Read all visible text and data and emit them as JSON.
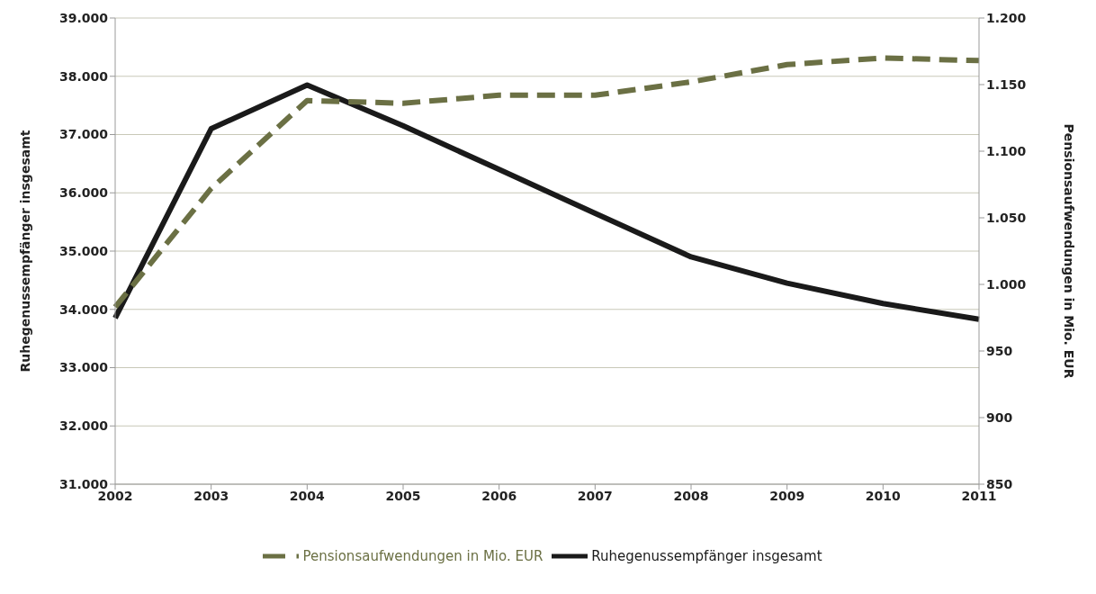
{
  "chart_data": {
    "type": "line",
    "categories": [
      "2002",
      "2003",
      "2004",
      "2005",
      "2006",
      "2007",
      "2008",
      "2009",
      "2010",
      "2011"
    ],
    "series": [
      {
        "name": "Ruhegenussempfänger insgesamt",
        "color": "#1a1a1a",
        "line_style": "solid",
        "values": [
          33850,
          37100,
          37850,
          37150,
          36400,
          35650,
          34900,
          34450,
          34100,
          33830
        ]
      },
      {
        "name": "Pensionsaufwendungen in Mio. EUR",
        "color": "#6b7044",
        "line_style": "dashed",
        "axis": "y2",
        "values": [
          983,
          1072,
          1138,
          1136,
          1142,
          1142,
          1152,
          1165,
          1170,
          1168
        ]
      }
    ],
    "ylabel": "Ruhegenussempfänger insgesamt",
    "y2label": "Pensionsaufwendungen in Mio. EUR",
    "ylim": [
      31000,
      39000
    ],
    "yticks": [
      {
        "value": 31000,
        "label": "31.000"
      },
      {
        "value": 32000,
        "label": "32.000"
      },
      {
        "value": 33000,
        "label": "33.000"
      },
      {
        "value": 34000,
        "label": "34.000"
      },
      {
        "value": 35000,
        "label": "35.000"
      },
      {
        "value": 36000,
        "label": "36.000"
      },
      {
        "value": 37000,
        "label": "37.000"
      },
      {
        "value": 38000,
        "label": "38.000"
      },
      {
        "value": 39000,
        "label": "39.000"
      }
    ],
    "y2lim": [
      850,
      1200
    ],
    "y2ticks": [
      850,
      900,
      950,
      {
        "value": 1000,
        "label": "1.000"
      },
      {
        "value": 1050,
        "label": "1.050"
      },
      {
        "value": 1100,
        "label": "1.100"
      },
      {
        "value": 1150,
        "label": "1.150"
      },
      {
        "value": 1200,
        "label": "1.200"
      }
    ],
    "grid": "y",
    "legend": "bottom",
    "marker": "none"
  }
}
